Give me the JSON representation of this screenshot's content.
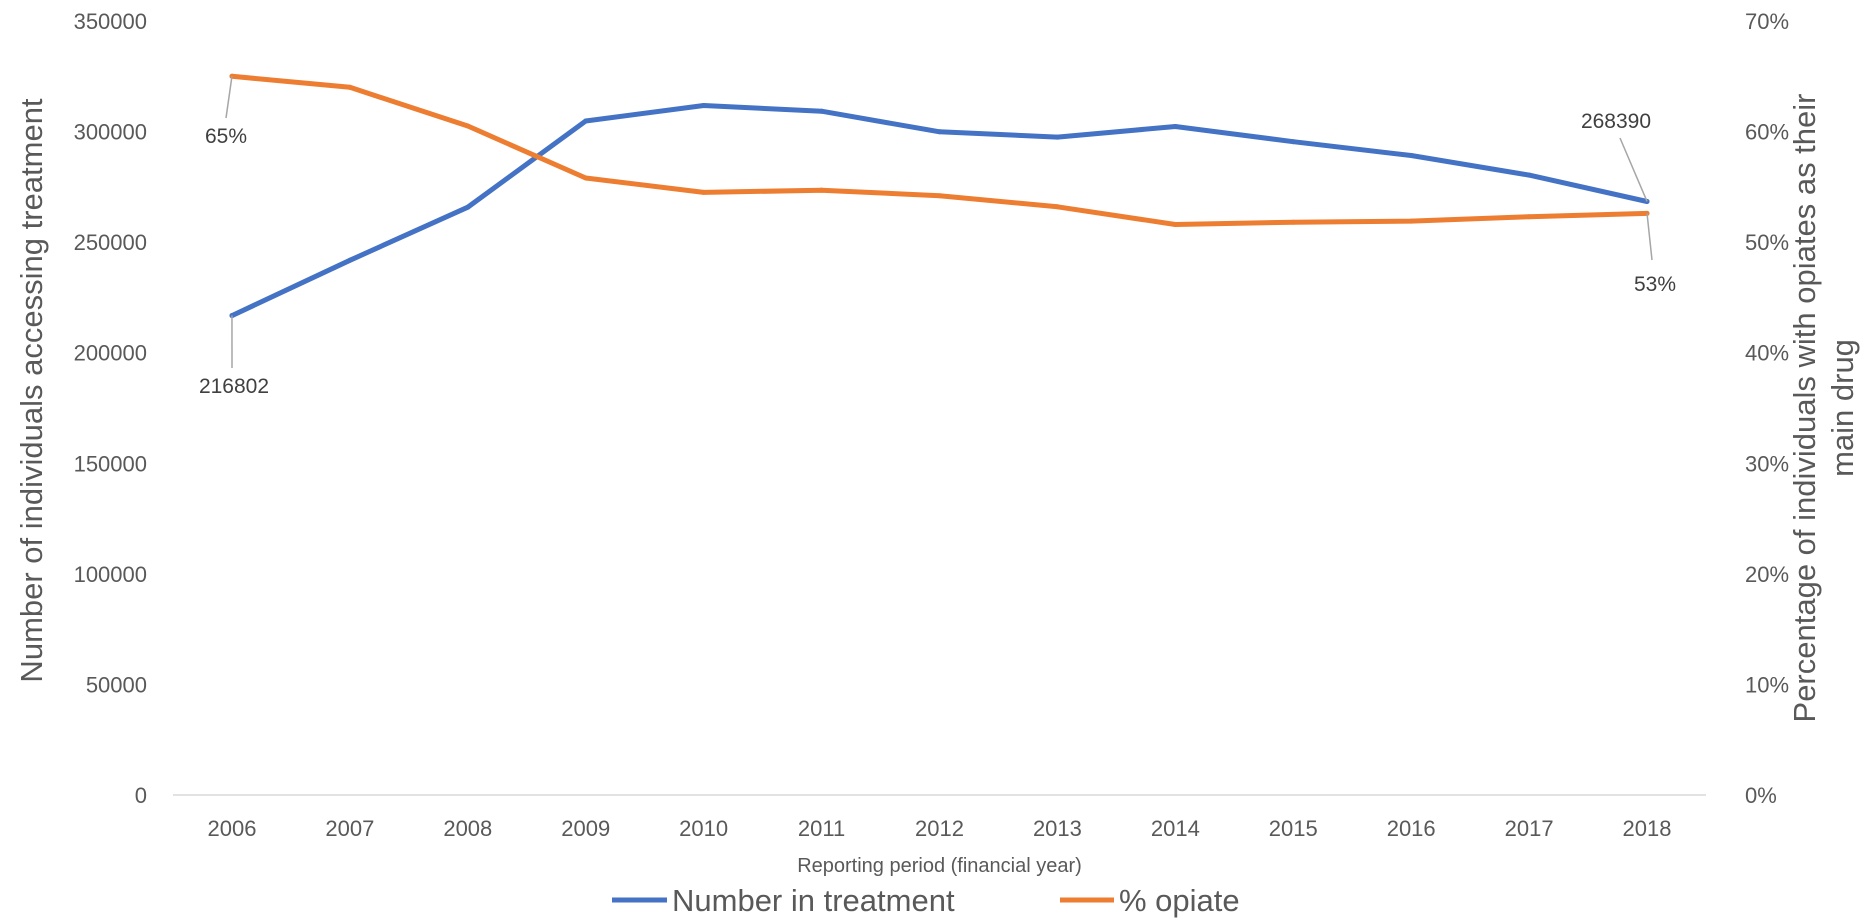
{
  "chart_data": {
    "type": "line",
    "x": [
      "2006",
      "2007",
      "2008",
      "2009",
      "2010",
      "2011",
      "2012",
      "2013",
      "2014",
      "2015",
      "2016",
      "2017",
      "2018"
    ],
    "series": [
      {
        "name": "Number in treatment",
        "axis": "left",
        "color": "#4472C4",
        "values": [
          216802,
          241800,
          265800,
          304800,
          311800,
          309200,
          299900,
          297500,
          302300,
          295400,
          289200,
          280300,
          268390
        ]
      },
      {
        "name": "% opiate",
        "axis": "right",
        "color": "#ED7D31",
        "values": [
          0.65,
          0.64,
          0.605,
          0.558,
          0.545,
          0.547,
          0.542,
          0.532,
          0.516,
          0.518,
          0.519,
          0.523,
          0.526
        ]
      }
    ],
    "ylabel": "Number of individuals accessing treatment",
    "y2label": "Percentage of individuals with opiates as their main drug",
    "xlabel": "Reporting period (financial year)",
    "ylim": [
      0,
      350000
    ],
    "y2lim": [
      0,
      0.7
    ],
    "yticks": [
      "0",
      "50000",
      "100000",
      "150000",
      "200000",
      "250000",
      "300000",
      "350000"
    ],
    "y2ticks": [
      "0%",
      "10%",
      "20%",
      "30%",
      "40%",
      "50%",
      "60%",
      "70%"
    ],
    "data_labels": [
      {
        "series": 0,
        "index": 0,
        "text": "216802"
      },
      {
        "series": 0,
        "index": 12,
        "text": "268390"
      },
      {
        "series": 1,
        "index": 0,
        "text": "65%"
      },
      {
        "series": 1,
        "index": 12,
        "text": "53%"
      }
    ],
    "grid": false,
    "legend_position": "bottom"
  }
}
